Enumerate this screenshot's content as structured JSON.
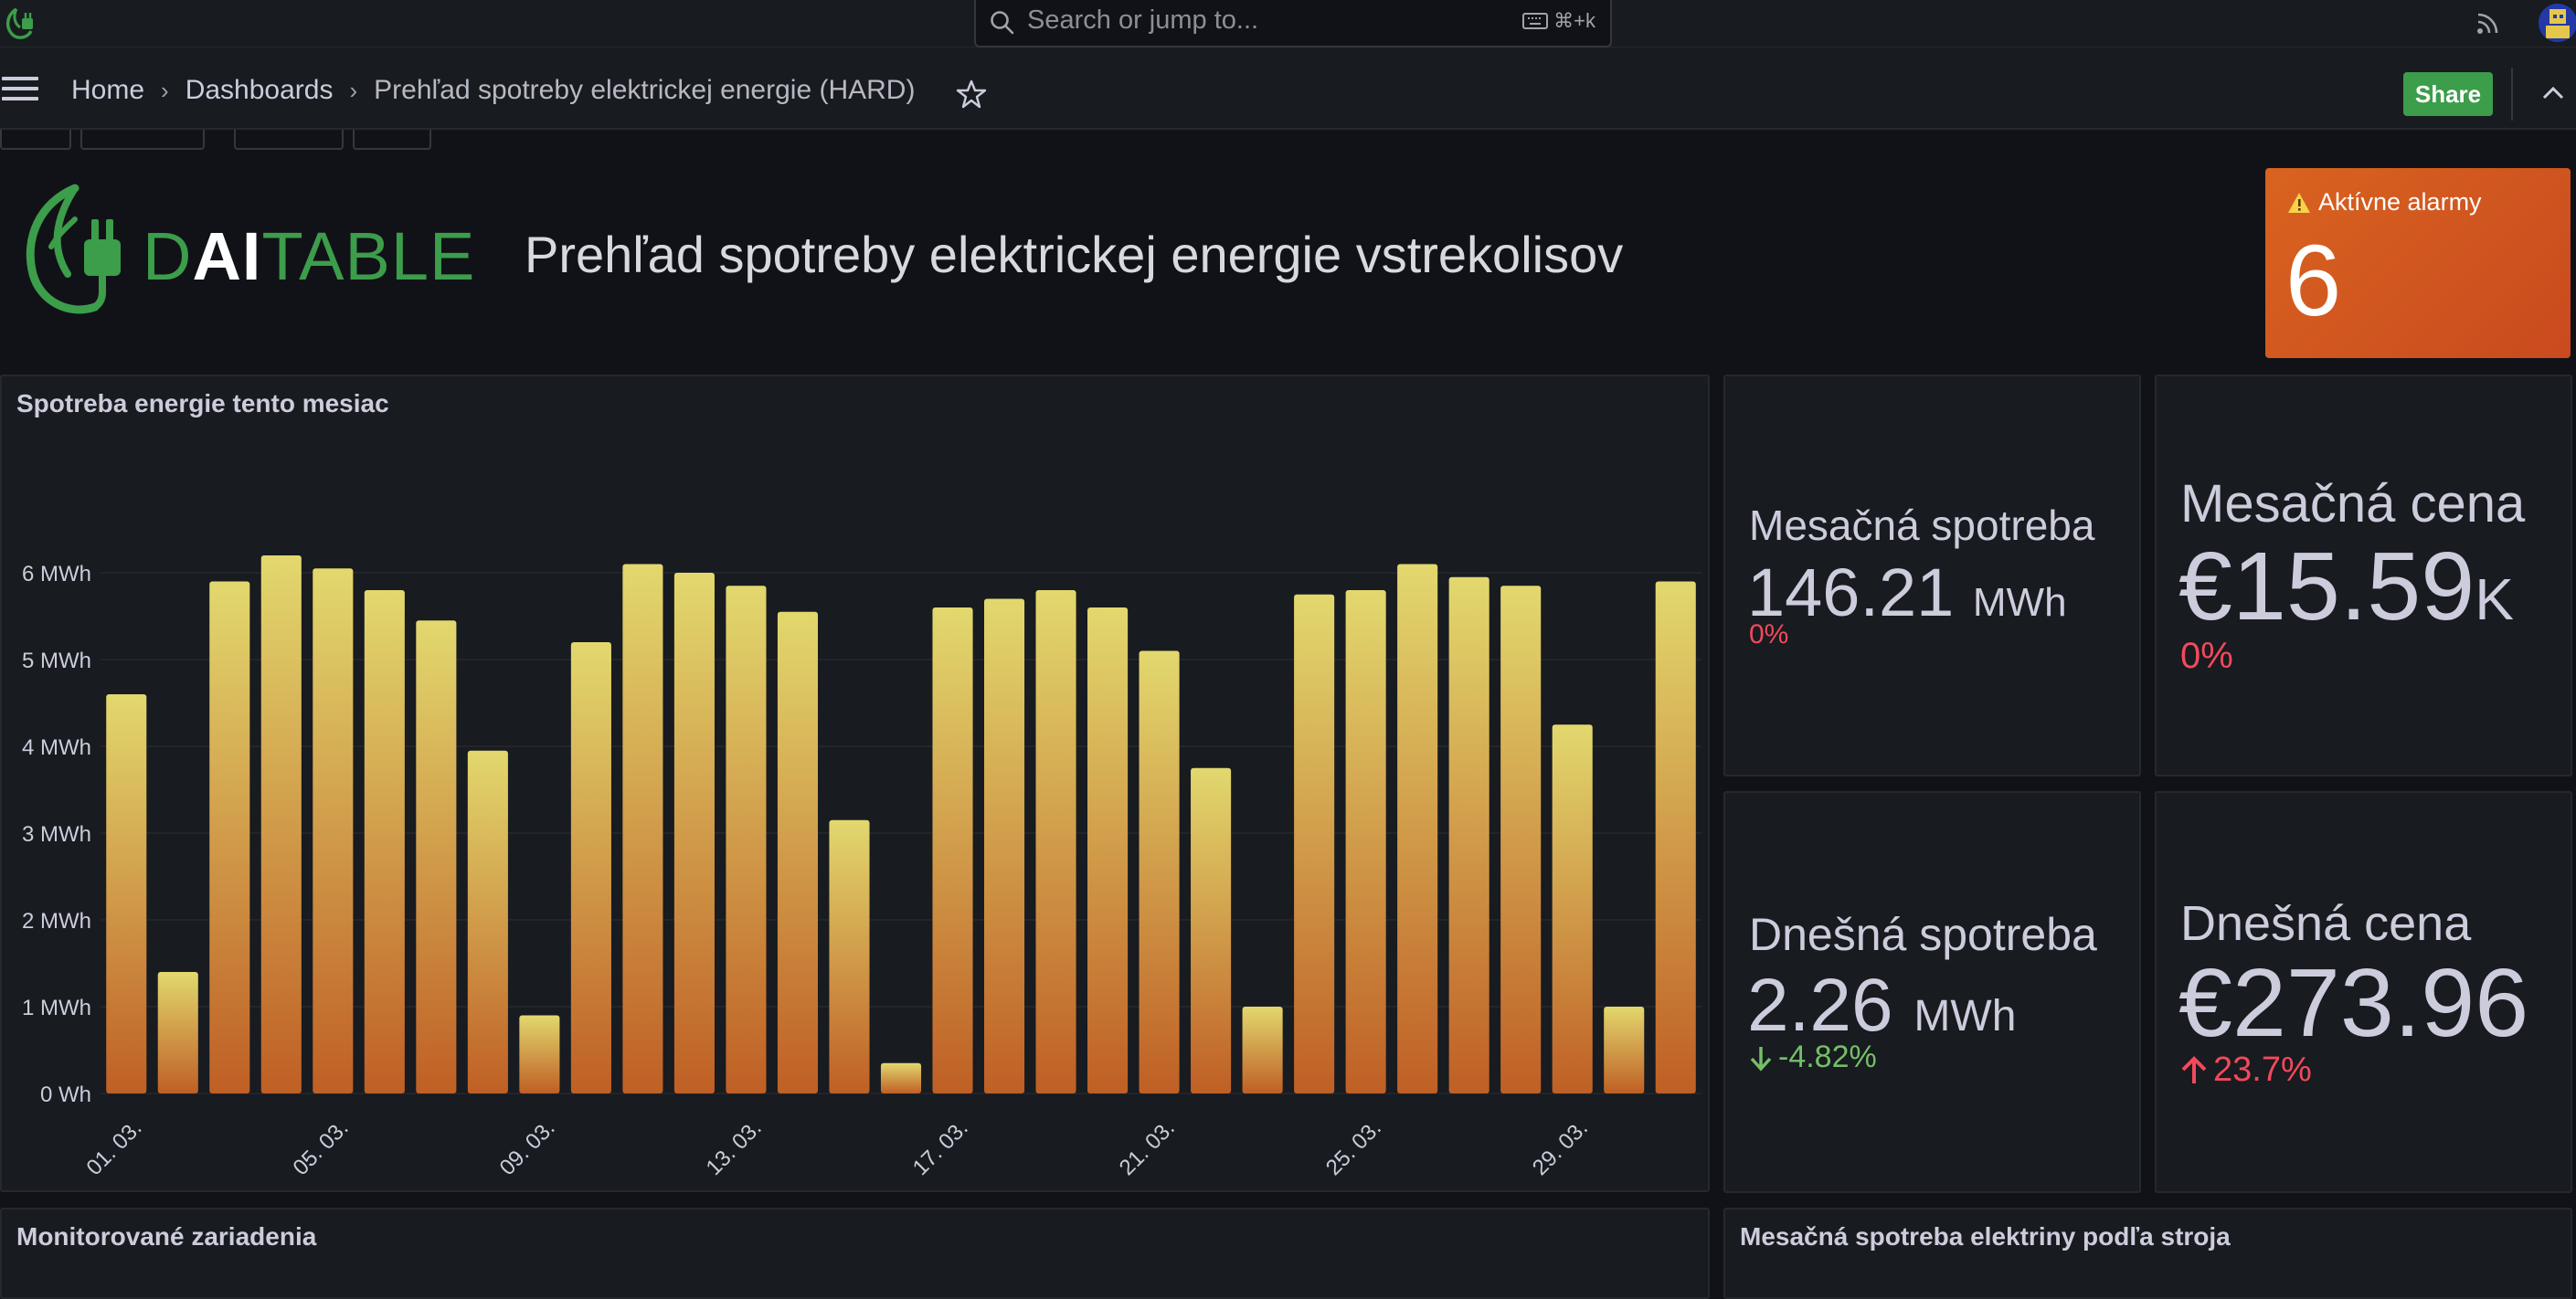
{
  "header": {
    "search_placeholder": "Search or jump to...",
    "search_shortcut": "⌘+k"
  },
  "navbar": {
    "crumbs": [
      "Home",
      "Dashboards",
      "Prehľad spotreby elektrickej energie (HARD)"
    ],
    "share_label": "Share"
  },
  "brand": {
    "logo_d": "D",
    "logo_ai": "AI",
    "logo_table": "TABLE",
    "page_title": "Prehľad spotreby elektrickej energie vstrekolisov"
  },
  "alarm": {
    "label": "Aktívne alarmy",
    "value": "6"
  },
  "stats": {
    "monthly_consumption": {
      "label": "Mesačná spotreba",
      "value": "146.21",
      "unit": "MWh",
      "delta": "0%"
    },
    "monthly_cost": {
      "label": "Mesačná cena",
      "prefix": "€",
      "value": "15.59",
      "unit": "K",
      "delta": "0%"
    },
    "daily_consumption": {
      "label": "Dnešná spotreba",
      "value": "2.26",
      "unit": "MWh",
      "delta": "-4.82%"
    },
    "daily_cost": {
      "label": "Dnešná cena",
      "prefix": "€",
      "value": "273.96",
      "delta": "23.7%"
    }
  },
  "panels": {
    "devices_title": "Monitorované zariadenia",
    "by_machine_title": "Mesačná spotreba elektriny podľa stroja"
  },
  "colors": {
    "bar_top": "#e2d86e",
    "bar_bottom": "#bf5f25",
    "accent_green": "#3c9d4b",
    "alarm": "#d9631f",
    "negative": "#f2495c",
    "positive": "#73bf69"
  },
  "chart_data": {
    "type": "bar",
    "title": "Spotreba energie tento mesiac",
    "unit": "MWh",
    "ylim": [
      0,
      6
    ],
    "y_ticks": [
      "0 Wh",
      "1 MWh",
      "2 MWh",
      "3 MWh",
      "4 MWh",
      "5 MWh",
      "6 MWh"
    ],
    "x_tick_labels": [
      "01. 03.",
      "05. 03.",
      "09. 03.",
      "13. 03.",
      "17. 03.",
      "21. 03.",
      "25. 03.",
      "29. 03."
    ],
    "categories": [
      "01. 03.",
      "02. 03.",
      "03. 03.",
      "04. 03.",
      "05. 03.",
      "06. 03.",
      "07. 03.",
      "08. 03.",
      "09. 03.",
      "10. 03.",
      "11. 03.",
      "12. 03.",
      "13. 03.",
      "14. 03.",
      "15. 03.",
      "16. 03.",
      "17. 03.",
      "18. 03.",
      "19. 03.",
      "20. 03.",
      "21. 03.",
      "22. 03.",
      "23. 03.",
      "24. 03.",
      "25. 03.",
      "26. 03.",
      "27. 03.",
      "28. 03.",
      "29. 03.",
      "30. 03.",
      "31. 03."
    ],
    "values": [
      4.6,
      1.4,
      5.9,
      6.2,
      6.05,
      5.8,
      5.45,
      3.95,
      0.9,
      5.2,
      6.1,
      6.0,
      5.85,
      5.55,
      3.15,
      0.35,
      5.6,
      5.7,
      5.8,
      5.6,
      5.1,
      3.75,
      1.0,
      5.75,
      5.8,
      6.1,
      5.95,
      5.85,
      4.25,
      1.0,
      5.9
    ],
    "grid": true,
    "legend": "none"
  }
}
